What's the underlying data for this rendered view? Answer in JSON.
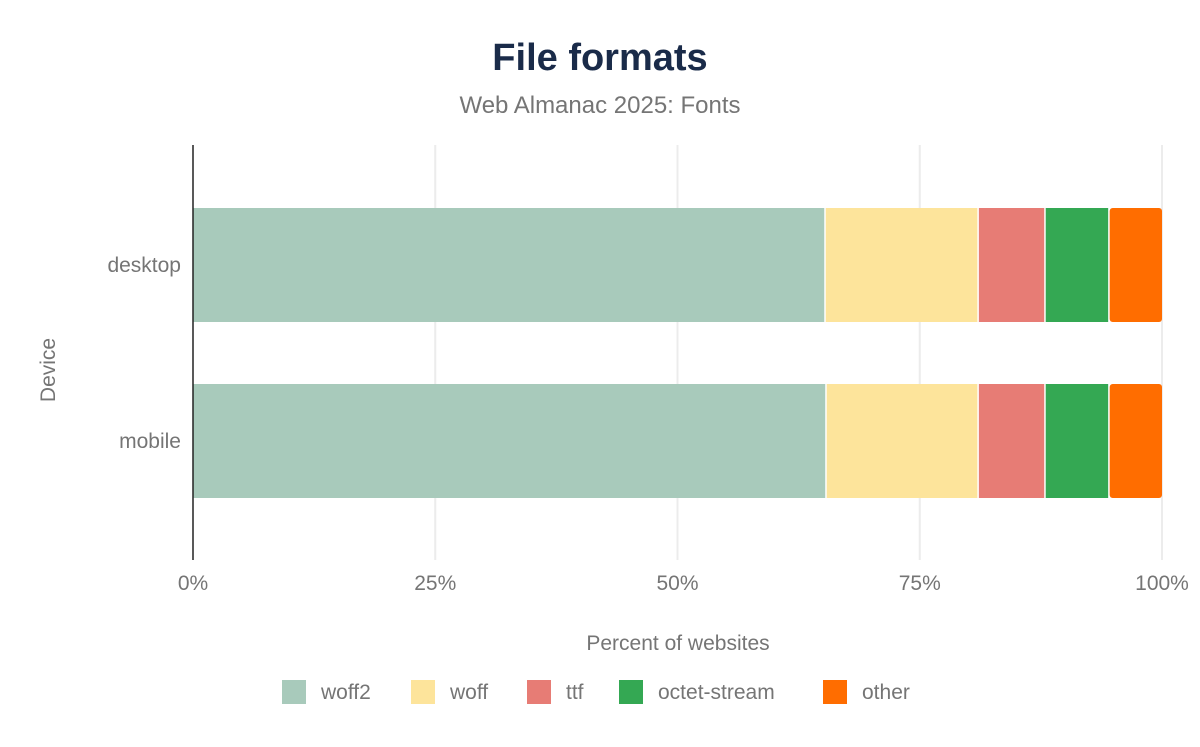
{
  "chart_data": {
    "type": "bar",
    "orientation": "horizontal",
    "stacked": true,
    "title": "File formats",
    "subtitle": "Web Almanac 2025: Fonts",
    "xlabel": "Percent of websites",
    "ylabel": "Device",
    "xlim": [
      0,
      100
    ],
    "x_ticks": [
      "0%",
      "25%",
      "50%",
      "75%",
      "100%"
    ],
    "x_tick_values": [
      0,
      25,
      50,
      75,
      100
    ],
    "grid": true,
    "legend_position": "bottom",
    "categories": [
      "desktop",
      "mobile"
    ],
    "series": [
      {
        "name": "woff2",
        "color": "#a8cabb",
        "values": [
          65.3,
          65.4
        ]
      },
      {
        "name": "woff",
        "color": "#fde49b",
        "values": [
          15.8,
          15.7
        ]
      },
      {
        "name": "ttf",
        "color": "#e77c75",
        "values": [
          6.9,
          6.9
        ]
      },
      {
        "name": "octet-stream",
        "color": "#34a853",
        "values": [
          6.6,
          6.6
        ]
      },
      {
        "name": "other",
        "color": "#ff6d00",
        "values": [
          5.4,
          5.4
        ]
      }
    ]
  }
}
